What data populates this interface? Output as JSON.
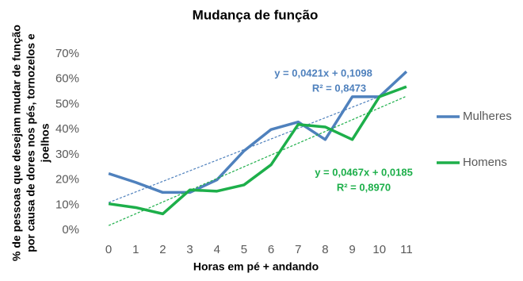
{
  "chart_data": {
    "type": "line",
    "title": "Mudança de função",
    "x_label": "Horas em pé + andando",
    "y_label": [
      "% de pessoas que desejam mudar de função",
      "por causa de dores nos pés, tornozelos e",
      "joelhos"
    ],
    "x": [
      0,
      1,
      2,
      3,
      4,
      5,
      6,
      7,
      8,
      9,
      10,
      11
    ],
    "xlim": [
      -0.5,
      11.5
    ],
    "xticks": [
      0,
      1,
      2,
      3,
      4,
      5,
      6,
      7,
      8,
      9,
      10,
      11
    ],
    "ylim": [
      0,
      70
    ],
    "yticks": [
      {
        "value": 0,
        "label": "0%"
      },
      {
        "value": 10,
        "label": "10%"
      },
      {
        "value": 20,
        "label": "20%"
      },
      {
        "value": 30,
        "label": "30%"
      },
      {
        "value": 40,
        "label": "40%"
      },
      {
        "value": 50,
        "label": "50%"
      },
      {
        "value": 60,
        "label": "60%"
      },
      {
        "value": 70,
        "label": "70%"
      }
    ],
    "grid": false,
    "legend": "right",
    "series": [
      {
        "name": "Mulheres",
        "color": "#4f81bd",
        "values": [
          22.5,
          19,
          15,
          15,
          20,
          31.5,
          40,
          43,
          36,
          53,
          53,
          63
        ],
        "trendline": {
          "x": [
            0,
            11
          ],
          "values": [
            10.98,
            57.29
          ],
          "equation": "y = 0,0421x + 0,1098",
          "r2": "R² = 0,8473"
        }
      },
      {
        "name": "Homens",
        "color": "#1daf4a",
        "values": [
          10.5,
          9,
          6.5,
          16,
          15.5,
          18,
          26,
          42,
          41,
          36,
          53,
          57
        ],
        "trendline": {
          "x": [
            0,
            11
          ],
          "values": [
            1.85,
            53.22
          ],
          "equation": "y = 0,0467x + 0,0185",
          "r2": "R² = 0,8970"
        }
      }
    ]
  }
}
